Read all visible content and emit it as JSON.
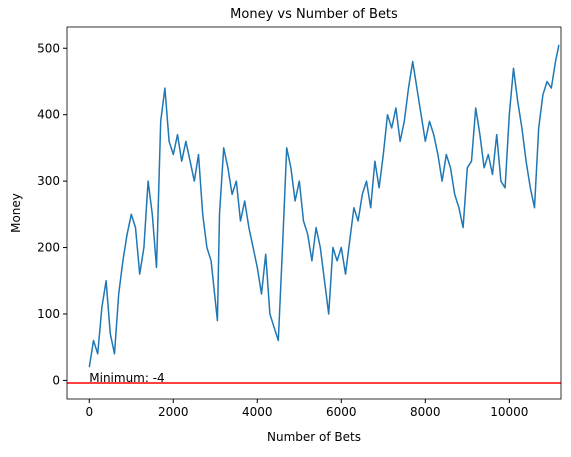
{
  "chart_data": {
    "type": "line",
    "title": "Money vs Number of Bets",
    "xlabel": "Number of Bets",
    "ylabel": "Money",
    "x": [
      0,
      100,
      200,
      300,
      400,
      500,
      600,
      700,
      800,
      900,
      1000,
      1100,
      1200,
      1300,
      1400,
      1500,
      1600,
      1700,
      1800,
      1900,
      2000,
      2100,
      2200,
      2300,
      2400,
      2500,
      2600,
      2700,
      2800,
      2900,
      3000,
      3050,
      3100,
      3200,
      3300,
      3400,
      3500,
      3600,
      3700,
      3800,
      3900,
      4000,
      4100,
      4200,
      4300,
      4400,
      4500,
      4600,
      4700,
      4800,
      4900,
      5000,
      5100,
      5200,
      5300,
      5400,
      5500,
      5600,
      5700,
      5800,
      5900,
      6000,
      6100,
      6200,
      6300,
      6400,
      6500,
      6600,
      6700,
      6800,
      6900,
      7000,
      7100,
      7200,
      7300,
      7400,
      7500,
      7600,
      7700,
      7800,
      7900,
      8000,
      8100,
      8200,
      8300,
      8400,
      8500,
      8600,
      8700,
      8800,
      8900,
      9000,
      9100,
      9200,
      9300,
      9400,
      9500,
      9600,
      9700,
      9800,
      9900,
      10000,
      10100,
      10200,
      10300,
      10400,
      10500,
      10600,
      10700,
      10800,
      10900,
      11000,
      11100,
      11180
    ],
    "series": [
      {
        "name": "Money",
        "color": "#1f77b4",
        "values": [
          20,
          60,
          40,
          110,
          150,
          70,
          40,
          130,
          180,
          220,
          250,
          230,
          160,
          200,
          300,
          250,
          170,
          390,
          440,
          360,
          340,
          370,
          330,
          360,
          330,
          300,
          340,
          250,
          200,
          180,
          120,
          90,
          250,
          350,
          320,
          280,
          300,
          240,
          270,
          230,
          200,
          170,
          130,
          190,
          100,
          80,
          60,
          200,
          350,
          320,
          270,
          300,
          240,
          220,
          180,
          230,
          200,
          150,
          100,
          200,
          180,
          200,
          160,
          210,
          260,
          240,
          280,
          300,
          260,
          330,
          290,
          340,
          400,
          380,
          410,
          360,
          390,
          440,
          480,
          440,
          400,
          360,
          390,
          370,
          340,
          300,
          340,
          320,
          280,
          260,
          230,
          320,
          330,
          410,
          370,
          320,
          340,
          310,
          370,
          300,
          290,
          400,
          470,
          420,
          380,
          330,
          290,
          260,
          380,
          430,
          450,
          440,
          480,
          505
        ]
      }
    ],
    "hline": {
      "value": -4,
      "color": "#ff0000"
    },
    "annotation": "Minimum: -4",
    "xlim": [
      -530,
      11230
    ],
    "ylim": [
      -28,
      532
    ],
    "xticks": [
      0,
      2000,
      4000,
      6000,
      8000,
      10000
    ],
    "yticks": [
      0,
      100,
      200,
      300,
      400,
      500
    ]
  }
}
